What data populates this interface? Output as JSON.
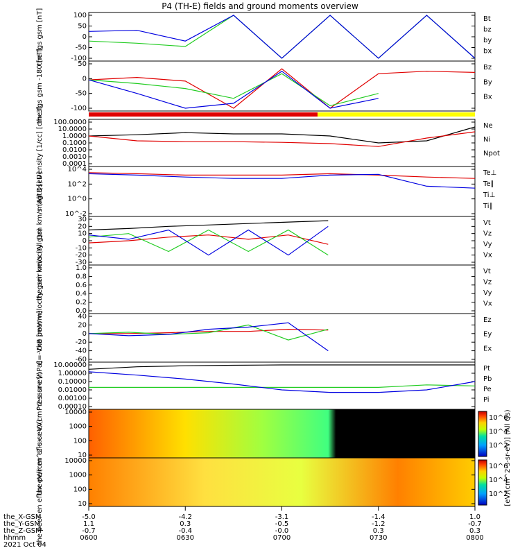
{
  "title": "P4 (TH-E) fields and ground moments overview",
  "colors": {
    "black": "#000000",
    "red": "#e00000",
    "green": "#22cc22",
    "blue": "#0000e0"
  },
  "legend_colors": {
    "Bt": "#000000",
    "bz": "#e00000",
    "by": "#22cc22",
    "bx": "#0000e0"
  },
  "x_axis": {
    "row_labels": [
      "the_X-GSM",
      "the_Y-GSM",
      "the_Z-GSM",
      "hhmm",
      "2021 Oct 04"
    ],
    "ticks": [
      {
        "x": "-5.0",
        "y": "1.1",
        "z": "-0.7",
        "t": "0600"
      },
      {
        "x": "-4.2",
        "y": "0.3",
        "z": "-0.4",
        "t": "0630"
      },
      {
        "x": "-3.1",
        "y": "-0.5",
        "z": "-0.0",
        "t": "0700"
      },
      {
        "x": "-1.4",
        "y": "-1.2",
        "z": "0.3",
        "t": "0730"
      },
      {
        "x": "1.0",
        "y": "-0.7",
        "z": "0.3",
        "t": "0800"
      }
    ]
  },
  "colorbar": {
    "label": "[eV/(cm^2-s-sr-eV)] (All Qs)",
    "ticks_top": [
      "10^6",
      "10^4",
      "10^2"
    ],
    "ticks_bottom": [
      "10^6",
      "10^4",
      "10^2"
    ]
  },
  "chart_data": [
    {
      "type": "line",
      "ylabel": "the fgs gsm [nT]",
      "ylim": [
        -100,
        100
      ],
      "yticks": [
        "100",
        "50",
        "0",
        "-50",
        "-100"
      ],
      "legend": [
        "Bt",
        "bz",
        "by",
        "bx"
      ],
      "x": [
        "0600",
        "0615",
        "0630",
        "0645",
        "0700",
        "0715",
        "0730",
        "0745",
        "0800"
      ],
      "series": [
        {
          "name": "by",
          "values": [
            -20,
            -30,
            -45,
            100,
            -100,
            100,
            -100,
            100,
            -100
          ]
        },
        {
          "name": "bx",
          "values": [
            25,
            30,
            -20,
            100,
            -100,
            100,
            -100,
            100,
            -100
          ]
        }
      ]
    },
    {
      "type": "line",
      "ylabel": "the fgs gsm -180 [nT]",
      "ylim": [
        -120,
        60
      ],
      "yticks": [
        "50",
        "0",
        "-50",
        "-100"
      ],
      "legend": [
        "Bz",
        "By",
        "Bx"
      ],
      "x": [
        "0600",
        "0615",
        "0630",
        "0645",
        "0700",
        "0715",
        "0730",
        "0745",
        "0800"
      ],
      "series": [
        {
          "name": "Bz",
          "values": [
            -5,
            5,
            -10,
            -120,
            40,
            -120,
            20,
            30,
            25
          ]
        },
        {
          "name": "By",
          "values": [
            -5,
            -20,
            -40,
            -80,
            20,
            -110,
            -60,
            null,
            null
          ]
        },
        {
          "name": "Bx",
          "values": [
            -5,
            -60,
            -120,
            -100,
            30,
            -120,
            -80,
            null,
            null
          ]
        }
      ]
    },
    {
      "type": "line",
      "ylabel": "Density [1/cc] [cm-3]",
      "ylim": [
        0.0001,
        100
      ],
      "yticks": [
        "100.0000",
        "10.0000",
        "1.0000",
        "0.1000",
        "0.0100",
        "0.0010",
        "0.0001"
      ],
      "legend": [
        "Ne",
        "Ni",
        "Npot"
      ],
      "x": [
        "0600",
        "0615",
        "0630",
        "0645",
        "0700",
        "0715",
        "0730",
        "0745",
        "0800"
      ],
      "series": [
        {
          "name": "Ni",
          "values": [
            1.0,
            1.5,
            3.0,
            2.0,
            2.0,
            1.0,
            0.1,
            0.2,
            20
          ]
        },
        {
          "name": "Ne",
          "values": [
            1.0,
            0.2,
            0.15,
            0.15,
            0.12,
            0.08,
            0.03,
            0.5,
            4
          ]
        }
      ]
    },
    {
      "type": "line",
      "ylabel": "magt3 [eV]",
      "ylim": [
        1,
        10000
      ],
      "yticks": [
        "10^4",
        "10^2",
        "10^0",
        "10^-2"
      ],
      "legend": [
        "Te⊥",
        "Te∥",
        "Ti⊥",
        "Ti∥"
      ],
      "x": [
        "0600",
        "0615",
        "0630",
        "0645",
        "0700",
        "0715",
        "0730",
        "0745",
        "0800"
      ],
      "series": [
        {
          "name": "Te⊥",
          "values": [
            5000,
            4000,
            3000,
            3000,
            3000,
            4000,
            3000,
            2000,
            1500
          ]
        },
        {
          "name": "Ti⊥",
          "values": [
            4000,
            3000,
            2000,
            1500,
            1500,
            3000,
            3500,
            300,
            200
          ]
        }
      ]
    },
    {
      "type": "line",
      "ylabel": "the peir velocity gsm km/s (All Qs)",
      "ylim": [
        -30,
        30
      ],
      "yticks": [
        "30",
        "20",
        "10",
        "0",
        "-10",
        "-20",
        "-30"
      ],
      "legend": [
        "Vt",
        "Vz",
        "Vy",
        "Vx"
      ],
      "x": [
        "0600",
        "0615",
        "0630",
        "0645",
        "0700",
        "0715",
        "0730"
      ],
      "series": [
        {
          "name": "Vt",
          "values": [
            15,
            17,
            20,
            22,
            24,
            26,
            28
          ]
        },
        {
          "name": "Vz",
          "values": [
            -3,
            0,
            5,
            8,
            2,
            8,
            -5
          ]
        },
        {
          "name": "Vy",
          "values": [
            5,
            10,
            -15,
            15,
            -15,
            15,
            -20
          ]
        },
        {
          "name": "Vx",
          "values": [
            8,
            2,
            15,
            -20,
            15,
            -20,
            20
          ]
        }
      ]
    },
    {
      "type": "line",
      "ylabel": "the peer velocity gsm km/s (All Qs)",
      "ylim": [
        0,
        1
      ],
      "yticks": [
        "1.0",
        "0.8",
        "0.6",
        "0.4",
        "0.2",
        "0.0"
      ],
      "legend": [
        "Vt",
        "Vz",
        "Vy",
        "Vx"
      ],
      "series": []
    },
    {
      "type": "line",
      "ylabel": "E=-VxB [mV/m]",
      "ylim": [
        -60,
        40
      ],
      "yticks": [
        "40",
        "20",
        "0",
        "-20",
        "-40",
        "-60"
      ],
      "legend": [
        "Ez",
        "Ey",
        "Ex"
      ],
      "x": [
        "0600",
        "0615",
        "0630",
        "0645",
        "0700",
        "0715",
        "0730"
      ],
      "series": [
        {
          "name": "Ez",
          "values": [
            0,
            0,
            2,
            5,
            5,
            10,
            8
          ]
        },
        {
          "name": "Ey",
          "values": [
            0,
            3,
            -2,
            2,
            20,
            -15,
            10
          ]
        },
        {
          "name": "Ex",
          "values": [
            0,
            -5,
            -2,
            10,
            15,
            25,
            -40
          ]
        }
      ]
    },
    {
      "type": "line",
      "ylabel": "Pressure [nPa]",
      "ylim": [
        0.0001,
        10
      ],
      "yticks": [
        "10.00000",
        "1.00000",
        "0.10000",
        "0.01000",
        "0.00100",
        "0.00010"
      ],
      "legend": [
        "Pt",
        "Pb",
        "Pe",
        "Pi"
      ],
      "x": [
        "0600",
        "0615",
        "0630",
        "0645",
        "0700",
        "0715",
        "0730",
        "0745",
        "0800"
      ],
      "series": [
        {
          "name": "Pt",
          "values": [
            3,
            6,
            8,
            9,
            10,
            10,
            10,
            10,
            10
          ]
        },
        {
          "name": "Pe",
          "values": [
            0.02,
            0.02,
            0.02,
            0.02,
            0.02,
            0.02,
            0.02,
            0.04,
            0.03
          ]
        },
        {
          "name": "Pi",
          "values": [
            1.5,
            0.6,
            0.2,
            0.05,
            0.01,
            0.005,
            0.005,
            0.01,
            0.1
          ]
        }
      ]
    },
    {
      "type": "heatmap",
      "ylabel": "the peir en eflux eV/(cm^2-s-sr-eV)",
      "yticks": [
        "10000",
        "1000",
        "100",
        "10"
      ]
    },
    {
      "type": "heatmap",
      "ylabel": "the peer en eflux eV/(cm^2-s-sr-eV)",
      "yticks": [
        "10000",
        "1000",
        "100",
        "10"
      ]
    }
  ]
}
